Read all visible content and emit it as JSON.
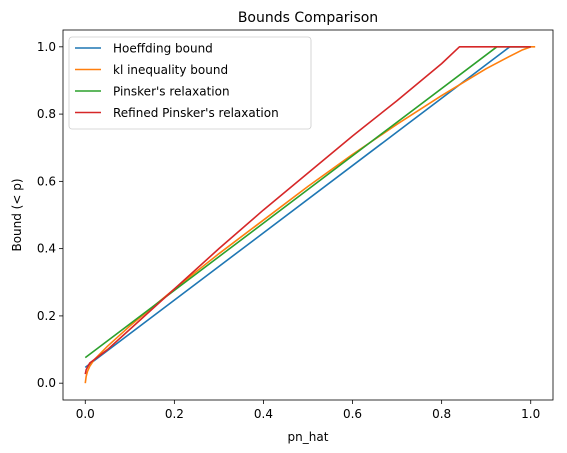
{
  "chart_data": {
    "type": "line",
    "title": "Bounds Comparison",
    "xlabel": "pn_hat",
    "ylabel": "Bound (< p)",
    "xlim": [
      -0.05,
      1.05
    ],
    "ylim": [
      -0.05,
      1.05
    ],
    "xticks": [
      0.0,
      0.2,
      0.4,
      0.6,
      0.8,
      1.0
    ],
    "xtick_labels": [
      "0.0",
      "0.2",
      "0.4",
      "0.6",
      "0.8",
      "1.0"
    ],
    "yticks": [
      0.0,
      0.2,
      0.4,
      0.6,
      0.8,
      1.0
    ],
    "ytick_labels": [
      "0.0",
      "0.2",
      "0.4",
      "0.6",
      "0.8",
      "1.0"
    ],
    "grid": false,
    "legend_position": "top-left",
    "series": [
      {
        "name": "Hoeffding bound",
        "color": "#1f77b4",
        "points": [
          [
            0.0,
            0.047
          ],
          [
            0.953,
            1.0
          ],
          [
            1.0,
            1.0
          ]
        ]
      },
      {
        "name": "kl inequality bound",
        "color": "#ff7f0e",
        "points": [
          [
            0.0,
            0.0
          ],
          [
            0.002,
            0.02
          ],
          [
            0.005,
            0.035
          ],
          [
            0.01,
            0.05
          ],
          [
            0.02,
            0.07
          ],
          [
            0.05,
            0.11
          ],
          [
            0.1,
            0.17
          ],
          [
            0.2,
            0.28
          ],
          [
            0.3,
            0.385
          ],
          [
            0.4,
            0.485
          ],
          [
            0.5,
            0.585
          ],
          [
            0.6,
            0.68
          ],
          [
            0.7,
            0.77
          ],
          [
            0.8,
            0.855
          ],
          [
            0.9,
            0.935
          ],
          [
            0.95,
            0.97
          ],
          [
            0.98,
            0.99
          ],
          [
            1.0,
            1.0
          ],
          [
            1.01,
            1.0
          ]
        ]
      },
      {
        "name": "Pinsker's relaxation",
        "color": "#2ca02c",
        "points": [
          [
            0.0,
            0.076
          ],
          [
            0.924,
            1.0
          ],
          [
            1.0,
            1.0
          ]
        ]
      },
      {
        "name": "Refined Pinsker's relaxation",
        "color": "#d62728",
        "points": [
          [
            0.0,
            0.027
          ],
          [
            0.002,
            0.04
          ],
          [
            0.01,
            0.06
          ],
          [
            0.05,
            0.1
          ],
          [
            0.1,
            0.16
          ],
          [
            0.2,
            0.28
          ],
          [
            0.3,
            0.4
          ],
          [
            0.4,
            0.515
          ],
          [
            0.5,
            0.625
          ],
          [
            0.6,
            0.735
          ],
          [
            0.7,
            0.84
          ],
          [
            0.8,
            0.95
          ],
          [
            0.84,
            1.0
          ],
          [
            1.0,
            1.0
          ]
        ]
      }
    ]
  }
}
